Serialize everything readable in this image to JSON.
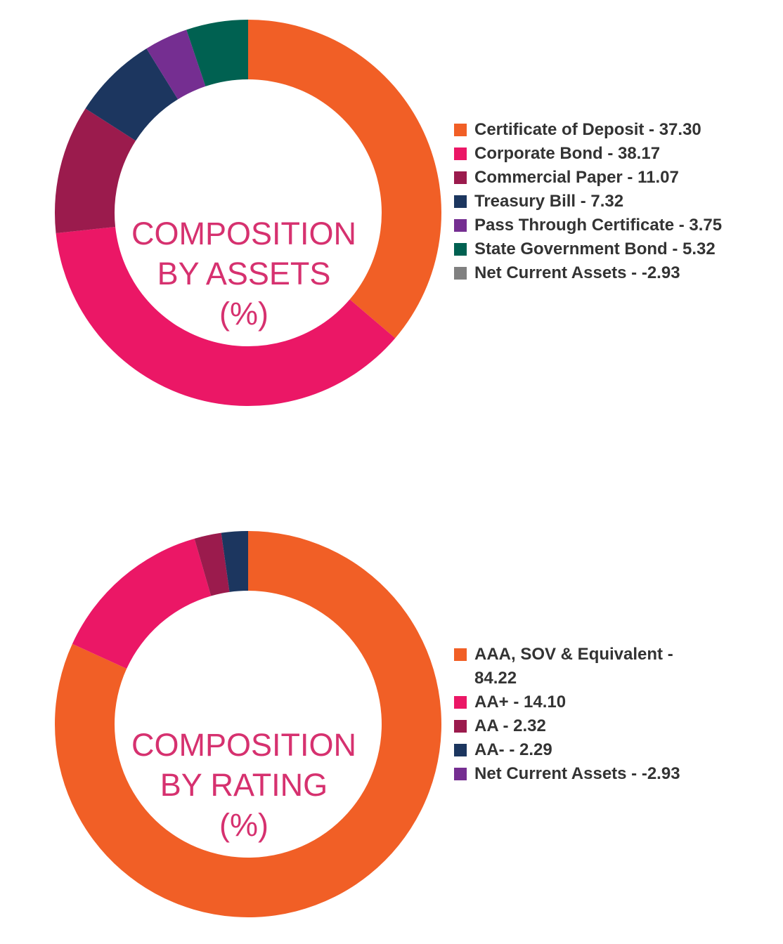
{
  "chart_data": [
    {
      "type": "pie",
      "title": "COMPOSITION BY ASSETS (%)",
      "title_lines": [
        "COMPOSITION",
        "BY ASSETS",
        "(%)"
      ],
      "labels": [
        "Certificate of Deposit - 37.30",
        "Corporate Bond - 38.17",
        "Commercial Paper - 11.07",
        "Treasury Bill - 7.32",
        "Pass Through Certificate - 3.75",
        "State Government Bond - 5.32",
        "Net Current Assets - -2.93"
      ],
      "categories": [
        "Certificate of Deposit",
        "Corporate Bond",
        "Commercial Paper",
        "Treasury Bill",
        "Pass Through Certificate",
        "State Government Bond",
        "Net Current Assets"
      ],
      "values": [
        37.3,
        38.17,
        11.07,
        7.32,
        3.75,
        5.32,
        -2.93
      ],
      "colors": [
        "#f15f26",
        "#eb1766",
        "#9b1b4d",
        "#1c365f",
        "#752e91",
        "#006151",
        "#808080"
      ],
      "legend": "right"
    },
    {
      "type": "pie",
      "title": "COMPOSITION BY RATING (%)",
      "title_lines": [
        "COMPOSITION",
        "BY RATING",
        "(%)"
      ],
      "labels": [
        "AAA, SOV & Equivalent - 84.22",
        "AA+ - 14.10",
        "AA - 2.32",
        "AA- - 2.29",
        "Net Current Assets - -2.93"
      ],
      "categories": [
        "AAA, SOV & Equivalent",
        "AA+",
        "AA",
        "AA-",
        "Net Current Assets"
      ],
      "values": [
        84.22,
        14.1,
        2.32,
        2.29,
        -2.93
      ],
      "colors": [
        "#f15f26",
        "#eb1766",
        "#9b1b4d",
        "#1c365f",
        "#752e91"
      ],
      "legend": "right"
    }
  ]
}
